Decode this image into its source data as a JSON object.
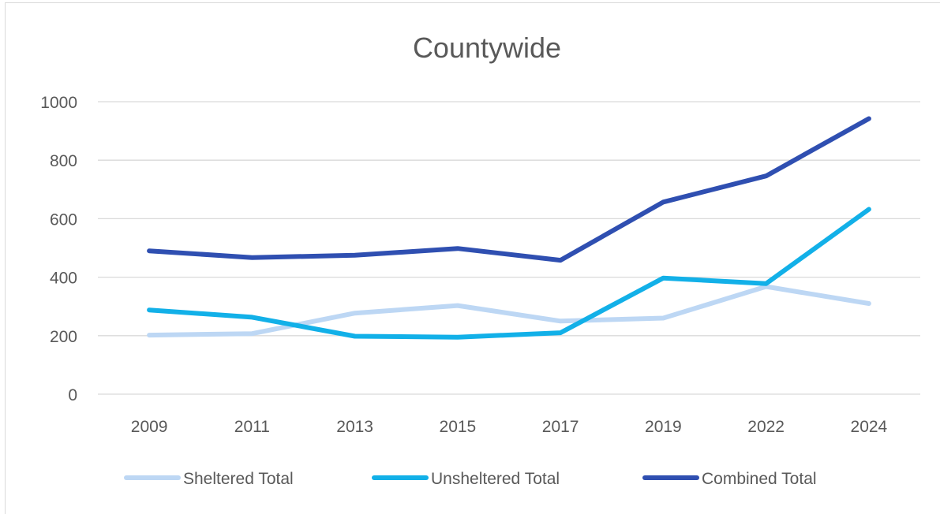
{
  "chart_data": {
    "type": "line",
    "title": "Countywide",
    "xlabel": "",
    "ylabel": "",
    "categories": [
      "2009",
      "2011",
      "2013",
      "2015",
      "2017",
      "2019",
      "2022",
      "2024"
    ],
    "ylim": [
      0,
      1000
    ],
    "yticks": [
      0,
      200,
      400,
      600,
      800,
      1000
    ],
    "grid": true,
    "legend_position": "bottom",
    "series": [
      {
        "name": "Sheltered Total",
        "color": "#bdd7f4",
        "values": [
          202,
          207,
          277,
          303,
          250,
          260,
          368,
          310
        ]
      },
      {
        "name": "Unsheltered Total",
        "color": "#12b0e8",
        "values": [
          288,
          263,
          198,
          195,
          210,
          397,
          378,
          632
        ]
      },
      {
        "name": "Combined Total",
        "color": "#2f4fb1",
        "values": [
          490,
          467,
          475,
          498,
          458,
          657,
          746,
          942
        ]
      }
    ]
  }
}
